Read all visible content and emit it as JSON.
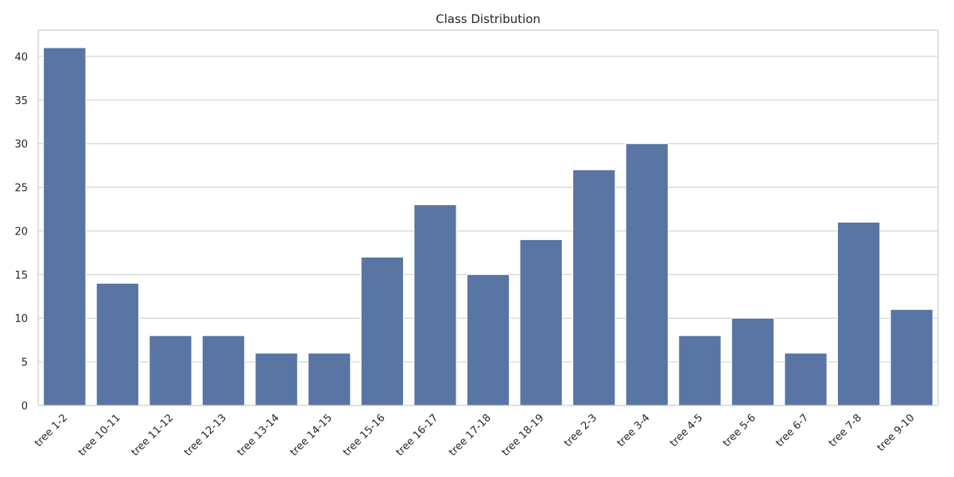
{
  "chart_data": {
    "type": "bar",
    "title": "Class Distribution",
    "xlabel": "",
    "ylabel": "",
    "categories": [
      "tree 1-2",
      "tree 10-11",
      "tree 11-12",
      "tree 12-13",
      "tree 13-14",
      "tree 14-15",
      "tree 15-16",
      "tree 16-17",
      "tree 17-18",
      "tree 18-19",
      "tree 2-3",
      "tree 3-4",
      "tree 4-5",
      "tree 5-6",
      "tree 6-7",
      "tree 7-8",
      "tree 9-10"
    ],
    "values": [
      41,
      14,
      8,
      8,
      6,
      6,
      17,
      23,
      15,
      19,
      27,
      30,
      8,
      10,
      6,
      21,
      11
    ],
    "ylim": [
      0,
      43
    ],
    "yticks": [
      0,
      5,
      10,
      15,
      20,
      25,
      30,
      35,
      40
    ],
    "grid": true,
    "bar_color": "#5975a4",
    "xtick_rotation": 45
  }
}
